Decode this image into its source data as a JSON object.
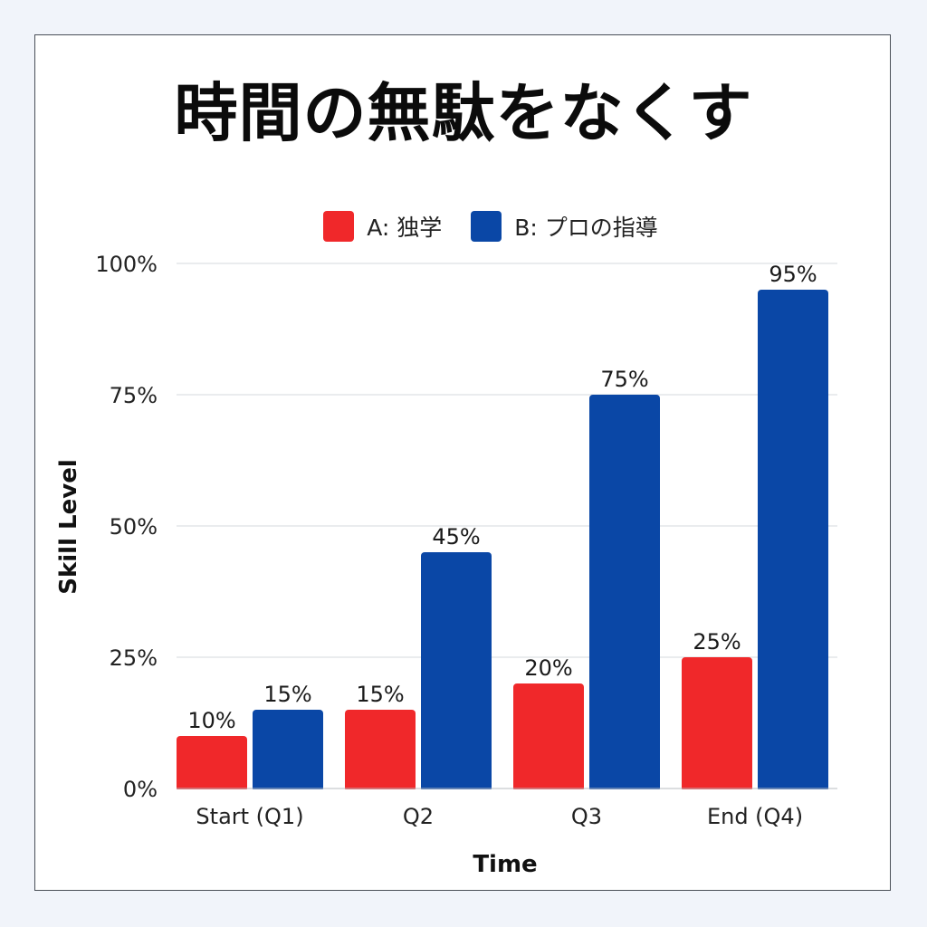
{
  "chart_data": {
    "type": "bar",
    "title": "時間の無駄をなくす",
    "xlabel": "Time",
    "ylabel": "Skill Level",
    "categories": [
      "Start (Q1)",
      "Q2",
      "Q3",
      "End (Q4)"
    ],
    "series": [
      {
        "name": "A: 独学",
        "values": [
          10,
          15,
          20,
          25
        ],
        "color": "#f0282a"
      },
      {
        "name": "B: プロの指導",
        "values": [
          15,
          45,
          75,
          95
        ],
        "color": "#0a47a6"
      }
    ],
    "ylim": [
      0,
      100
    ],
    "yticks": [
      0,
      25,
      50,
      75,
      100
    ],
    "ytick_labels": [
      "0%",
      "25%",
      "50%",
      "75%",
      "100%"
    ],
    "data_labels": [
      [
        "10%",
        "15%",
        "20%",
        "25%"
      ],
      [
        "15%",
        "45%",
        "75%",
        "95%"
      ]
    ],
    "grid": true,
    "legend_position": "top"
  }
}
